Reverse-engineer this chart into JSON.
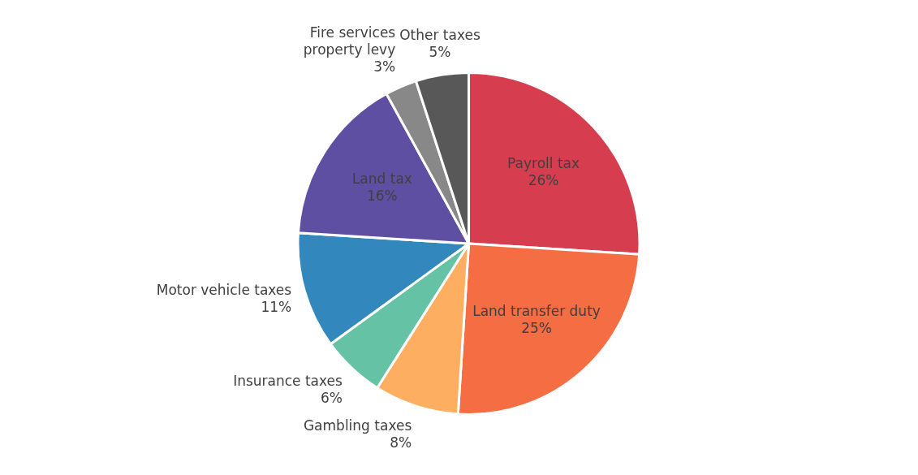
{
  "chart_data": {
    "type": "pie",
    "categories": [
      "Payroll tax",
      "Land transfer duty",
      "Gambling taxes",
      "Insurance taxes",
      "Motor vehicle taxes",
      "Land tax",
      "Fire services property levy",
      "Other taxes"
    ],
    "values": [
      26,
      25,
      8,
      6,
      11,
      16,
      3,
      5
    ],
    "value_labels": [
      "26%",
      "25%",
      "8%",
      "6%",
      "11%",
      "16%",
      "3%",
      "5%"
    ],
    "colors": [
      "#d63e4f",
      "#f46d43",
      "#fdae61",
      "#66c2a5",
      "#3288bd",
      "#5e4fa2",
      "#888888",
      "#585858"
    ],
    "legend": false
  }
}
